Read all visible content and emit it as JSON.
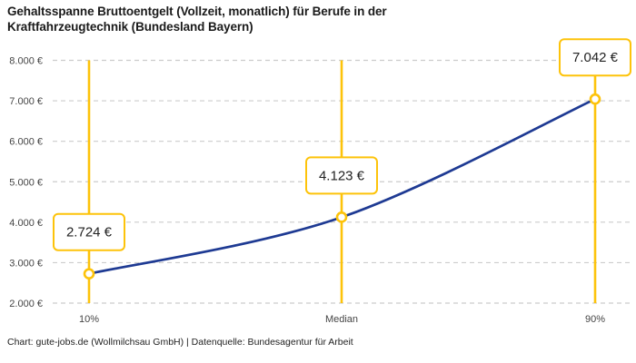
{
  "header": {
    "title_line1": "Gehaltsspanne Bruttoentgelt (Vollzeit, monatlich) für Berufe in der",
    "title_line2": "Kraftfahrzeugtechnik (Bundesland Bayern)"
  },
  "footer": {
    "text": "Chart: gute-jobs.de (Wollmilchsau GmbH) | Datenquelle: Bundesagentur für Arbeit"
  },
  "colors": {
    "accent_yellow": "#fdc30a",
    "line_blue": "#1e3a93",
    "grid": "#cccccc",
    "title_text": "#1a1a1a",
    "tick_text": "#444444",
    "label_text": "#222222",
    "point_fill": "#ffffff",
    "background": "#ffffff"
  },
  "chart_data": {
    "type": "line",
    "title": "Gehaltsspanne Bruttoentgelt (Vollzeit, monatlich) für Berufe in der Kraftfahrzeugtechnik (Bundesland Bayern)",
    "categories": [
      "10%",
      "Median",
      "90%"
    ],
    "values": [
      2724,
      4123,
      7042
    ],
    "point_labels": [
      "2.724 €",
      "4.123 €",
      "7.042 €"
    ],
    "y_ticks": [
      2000,
      3000,
      4000,
      5000,
      6000,
      7000,
      8000
    ],
    "y_tick_labels": [
      "2.000 €",
      "3.000 €",
      "4.000 €",
      "5.000 €",
      "6.000 €",
      "7.000 €",
      "8.000 €"
    ],
    "ylim": [
      2000,
      8000
    ],
    "xlabel": "",
    "ylabel": "",
    "grid": true,
    "legend": false,
    "source": "Chart: gute-jobs.de (Wollmilchsau GmbH) | Datenquelle: Bundesagentur für Arbeit"
  }
}
